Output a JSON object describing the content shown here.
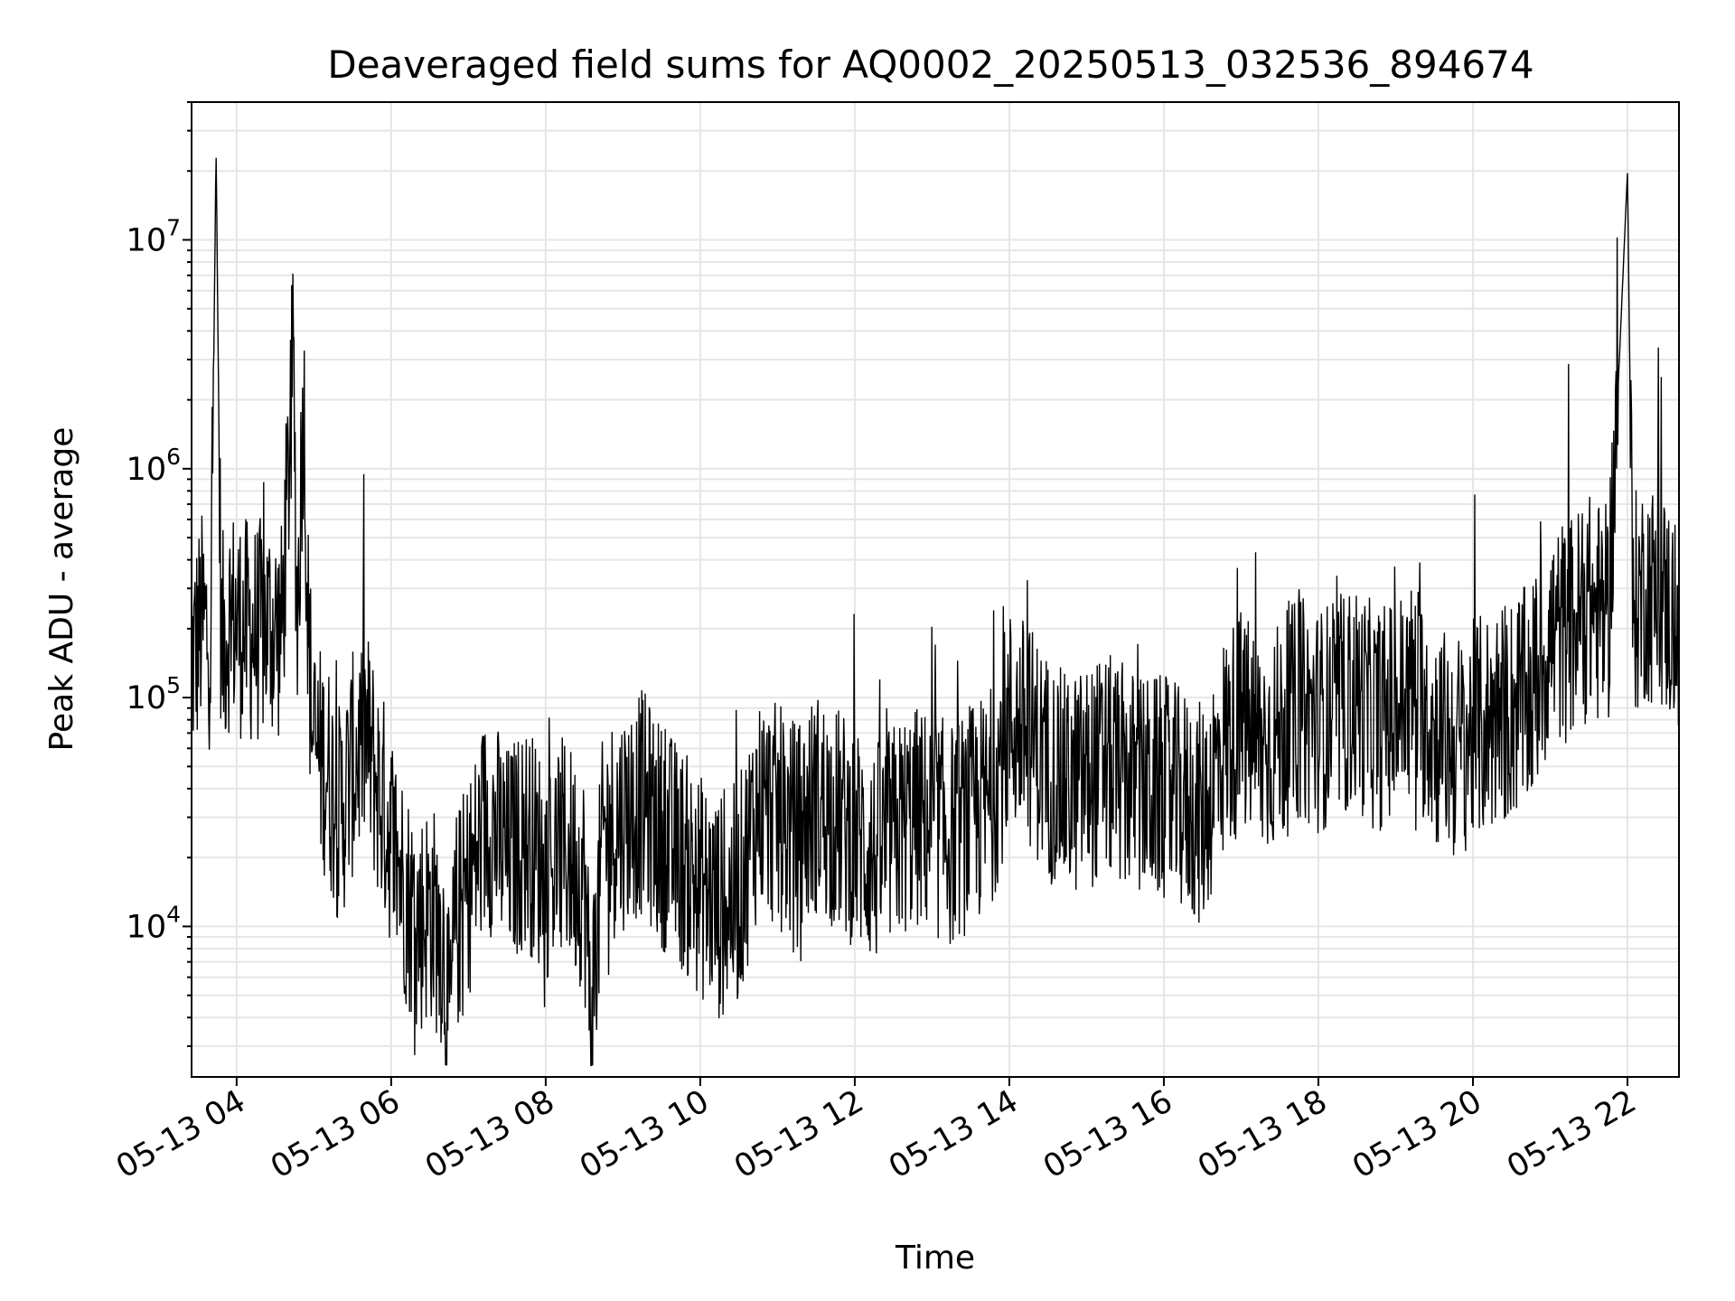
{
  "chart_data": {
    "type": "line",
    "title": "Deaveraged field sums for AQ0002_20250513_032536_894674",
    "xlabel": "Time",
    "ylabel": "Peak ADU - average",
    "yscale": "log",
    "xlim": [
      "2025-05-13T03:25",
      "2025-05-13T22:40"
    ],
    "ylim": [
      2200,
      40000000
    ],
    "grid": true,
    "line_color": "#000000",
    "grid_color": "#e6e6e6",
    "x_ticks": [
      {
        "value": "2025-05-13T04:00",
        "label": "05-13 04"
      },
      {
        "value": "2025-05-13T06:00",
        "label": "05-13 06"
      },
      {
        "value": "2025-05-13T08:00",
        "label": "05-13 08"
      },
      {
        "value": "2025-05-13T10:00",
        "label": "05-13 10"
      },
      {
        "value": "2025-05-13T12:00",
        "label": "05-13 12"
      },
      {
        "value": "2025-05-13T14:00",
        "label": "05-13 14"
      },
      {
        "value": "2025-05-13T16:00",
        "label": "05-13 16"
      },
      {
        "value": "2025-05-13T18:00",
        "label": "05-13 18"
      },
      {
        "value": "2025-05-13T20:00",
        "label": "05-13 20"
      },
      {
        "value": "2025-05-13T22:00",
        "label": "05-13 22"
      }
    ],
    "y_ticks": [
      {
        "value": 10000,
        "base": "10",
        "exp": "4"
      },
      {
        "value": 100000,
        "base": "10",
        "exp": "5"
      },
      {
        "value": 1000000,
        "base": "10",
        "exp": "6"
      },
      {
        "value": 10000000,
        "base": "10",
        "exp": "7"
      }
    ],
    "series": [
      {
        "points": [
          [
            "2025-05-13T03:26",
            150000
          ],
          [
            "2025-05-13T03:33",
            210000
          ],
          [
            "2025-05-13T03:40",
            180000
          ],
          [
            "2025-05-13T03:44",
            26000000
          ],
          [
            "2025-05-13T03:48",
            160000
          ],
          [
            "2025-05-13T03:55",
            230000
          ],
          [
            "2025-05-13T04:05",
            200000
          ],
          [
            "2025-05-13T04:15",
            190000
          ],
          [
            "2025-05-13T04:25",
            210000
          ],
          [
            "2025-05-13T04:35",
            190000
          ],
          [
            "2025-05-13T04:44",
            3000000
          ],
          [
            "2025-05-13T04:47",
            210000
          ],
          [
            "2025-05-13T04:52",
            2200000
          ],
          [
            "2025-05-13T04:56",
            160000
          ],
          [
            "2025-05-13T05:00",
            60000
          ],
          [
            "2025-05-13T05:10",
            50000
          ],
          [
            "2025-05-13T05:20",
            30000
          ],
          [
            "2025-05-13T05:30",
            50000
          ],
          [
            "2025-05-13T05:40",
            70000
          ],
          [
            "2025-05-13T05:50",
            40000
          ],
          [
            "2025-05-13T06:00",
            25000
          ],
          [
            "2025-05-13T06:10",
            15000
          ],
          [
            "2025-05-13T06:20",
            10000
          ],
          [
            "2025-05-13T06:30",
            12000
          ],
          [
            "2025-05-13T06:40",
            9000
          ],
          [
            "2025-05-13T06:45",
            3500
          ],
          [
            "2025-05-13T06:50",
            10000
          ],
          [
            "2025-05-13T07:00",
            15000
          ],
          [
            "2025-05-13T07:15",
            30000
          ],
          [
            "2025-05-13T07:30",
            20000
          ],
          [
            "2025-05-13T07:45",
            25000
          ],
          [
            "2025-05-13T08:00",
            18000
          ],
          [
            "2025-05-13T08:15",
            22000
          ],
          [
            "2025-05-13T08:30",
            16000
          ],
          [
            "2025-05-13T08:35",
            3900
          ],
          [
            "2025-05-13T08:45",
            25000
          ],
          [
            "2025-05-13T09:00",
            30000
          ],
          [
            "2025-05-13T09:15",
            35000
          ],
          [
            "2025-05-13T09:30",
            25000
          ],
          [
            "2025-05-13T09:45",
            20000
          ],
          [
            "2025-05-13T10:00",
            15000
          ],
          [
            "2025-05-13T10:15",
            12000
          ],
          [
            "2025-05-13T10:30",
            14000
          ],
          [
            "2025-05-13T10:45",
            35000
          ],
          [
            "2025-05-13T11:00",
            30000
          ],
          [
            "2025-05-13T11:15",
            25000
          ],
          [
            "2025-05-13T11:30",
            35000
          ],
          [
            "2025-05-13T11:45",
            30000
          ],
          [
            "2025-05-13T12:00",
            25000
          ],
          [
            "2025-05-13T12:15",
            20000
          ],
          [
            "2025-05-13T12:30",
            25000
          ],
          [
            "2025-05-13T12:45",
            30000
          ],
          [
            "2025-05-13T13:00",
            28000
          ],
          [
            "2025-05-13T13:15",
            25000
          ],
          [
            "2025-05-13T13:30",
            30000
          ],
          [
            "2025-05-13T13:45",
            35000
          ],
          [
            "2025-05-13T14:00",
            80000
          ],
          [
            "2025-05-13T14:15",
            70000
          ],
          [
            "2025-05-13T14:30",
            50000
          ],
          [
            "2025-05-13T14:45",
            40000
          ],
          [
            "2025-05-13T15:00",
            45000
          ],
          [
            "2025-05-13T15:15",
            50000
          ],
          [
            "2025-05-13T15:30",
            45000
          ],
          [
            "2025-05-13T15:45",
            40000
          ],
          [
            "2025-05-13T16:00",
            40000
          ],
          [
            "2025-05-13T16:15",
            35000
          ],
          [
            "2025-05-13T16:30",
            30000
          ],
          [
            "2025-05-13T16:45",
            60000
          ],
          [
            "2025-05-13T17:00",
            80000
          ],
          [
            "2025-05-13T17:15",
            60000
          ],
          [
            "2025-05-13T17:30",
            70000
          ],
          [
            "2025-05-13T17:45",
            90000
          ],
          [
            "2025-05-13T18:00",
            80000
          ],
          [
            "2025-05-13T18:15",
            90000
          ],
          [
            "2025-05-13T18:30",
            100000
          ],
          [
            "2025-05-13T18:45",
            80000
          ],
          [
            "2025-05-13T19:00",
            90000
          ],
          [
            "2025-05-13T19:15",
            110000
          ],
          [
            "2025-05-13T19:30",
            70000
          ],
          [
            "2025-05-13T19:45",
            60000
          ],
          [
            "2025-05-13T20:00",
            70000
          ],
          [
            "2025-05-13T20:15",
            80000
          ],
          [
            "2025-05-13T20:30",
            90000
          ],
          [
            "2025-05-13T20:45",
            100000
          ],
          [
            "2025-05-13T21:00",
            180000
          ],
          [
            "2025-05-13T21:15",
            200000
          ],
          [
            "2025-05-13T21:30",
            250000
          ],
          [
            "2025-05-13T21:45",
            220000
          ],
          [
            "2025-05-13T22:00",
            20000000
          ],
          [
            "2025-05-13T22:04",
            250000
          ],
          [
            "2025-05-13T22:15",
            300000
          ],
          [
            "2025-05-13T22:30",
            250000
          ],
          [
            "2025-05-13T22:39",
            200000
          ]
        ]
      }
    ]
  }
}
